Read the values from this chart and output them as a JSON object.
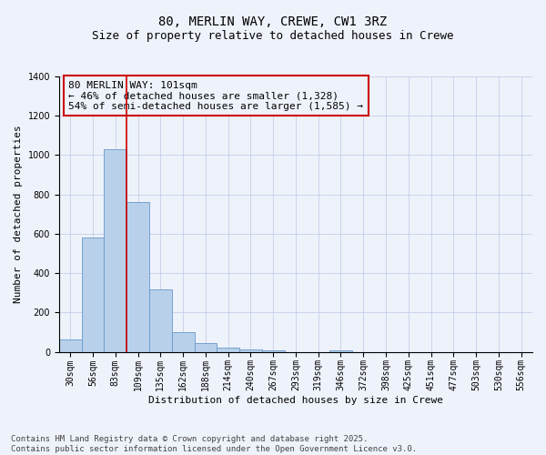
{
  "title_line1": "80, MERLIN WAY, CREWE, CW1 3RZ",
  "title_line2": "Size of property relative to detached houses in Crewe",
  "xlabel": "Distribution of detached houses by size in Crewe",
  "ylabel": "Number of detached properties",
  "categories": [
    "30sqm",
    "56sqm",
    "83sqm",
    "109sqm",
    "135sqm",
    "162sqm",
    "188sqm",
    "214sqm",
    "240sqm",
    "267sqm",
    "293sqm",
    "319sqm",
    "346sqm",
    "372sqm",
    "398sqm",
    "425sqm",
    "451sqm",
    "477sqm",
    "503sqm",
    "530sqm",
    "556sqm"
  ],
  "values": [
    65,
    580,
    1030,
    760,
    315,
    100,
    42,
    20,
    12,
    8,
    0,
    0,
    8,
    0,
    0,
    0,
    0,
    0,
    0,
    0,
    0
  ],
  "bar_color": "#b8d0ea",
  "bar_edge_color": "#6699cc",
  "vline_color": "#cc0000",
  "annotation_text": "80 MERLIN WAY: 101sqm\n← 46% of detached houses are smaller (1,328)\n54% of semi-detached houses are larger (1,585) →",
  "annotation_box_color": "#cc0000",
  "ylim": [
    0,
    1400
  ],
  "yticks": [
    0,
    200,
    400,
    600,
    800,
    1000,
    1200,
    1400
  ],
  "footnote": "Contains HM Land Registry data © Crown copyright and database right 2025.\nContains public sector information licensed under the Open Government Licence v3.0.",
  "background_color": "#eef2fb",
  "grid_color": "#c5cfe8",
  "title_fontsize": 10,
  "subtitle_fontsize": 9,
  "axis_label_fontsize": 8,
  "tick_fontsize": 7,
  "annotation_fontsize": 8,
  "footnote_fontsize": 6.5
}
